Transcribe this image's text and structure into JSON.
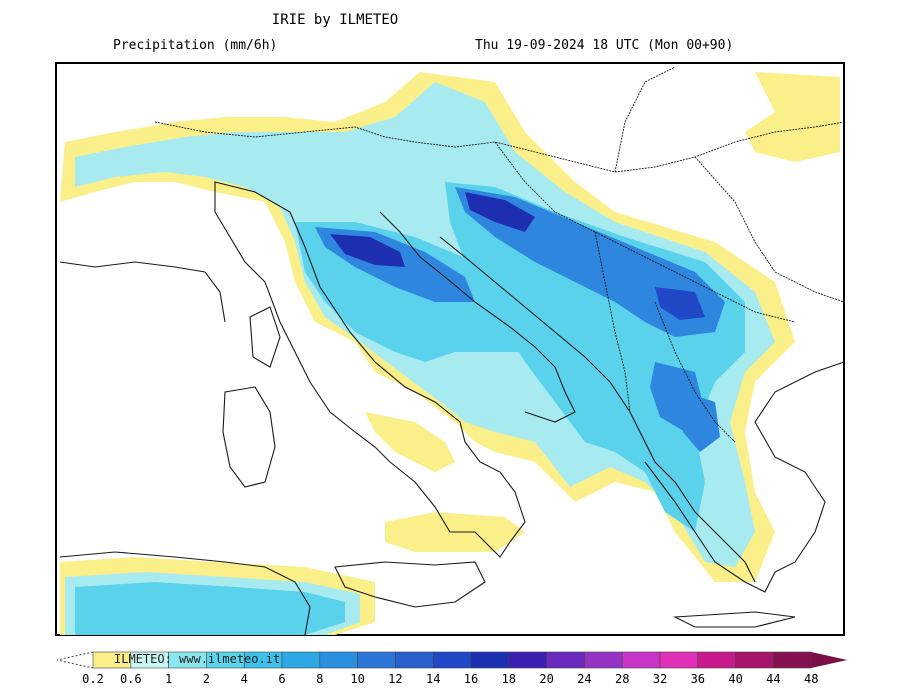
{
  "header": {
    "title": "IRIE by ILMETEO",
    "left_subtitle": "Precipitation (mm/6h)",
    "right_subtitle": "Thu 19-09-2024 18 UTC (Mon 00+90)"
  },
  "watermark": "ILMETEO: www.ilmeteo.it",
  "legend": {
    "ticks": [
      "0.2",
      "0.6",
      "1",
      "2",
      "4",
      "6",
      "8",
      "10",
      "12",
      "14",
      "16",
      "18",
      "20",
      "24",
      "28",
      "32",
      "36",
      "40",
      "44",
      "48"
    ],
    "colors": [
      "#fbef8a",
      "#c9f5f2",
      "#89e6ee",
      "#58d4eb",
      "#3cc1ea",
      "#2ea7e6",
      "#2a8fdf",
      "#2d76d9",
      "#2a5fd0",
      "#2047c5",
      "#1b2fb3",
      "#3a1fb0",
      "#6a2abf",
      "#9633c5",
      "#c935c9",
      "#e02fb8",
      "#c91a8d",
      "#a7146c",
      "#85104f"
    ],
    "arrow_color": "#7a0f45"
  }
}
